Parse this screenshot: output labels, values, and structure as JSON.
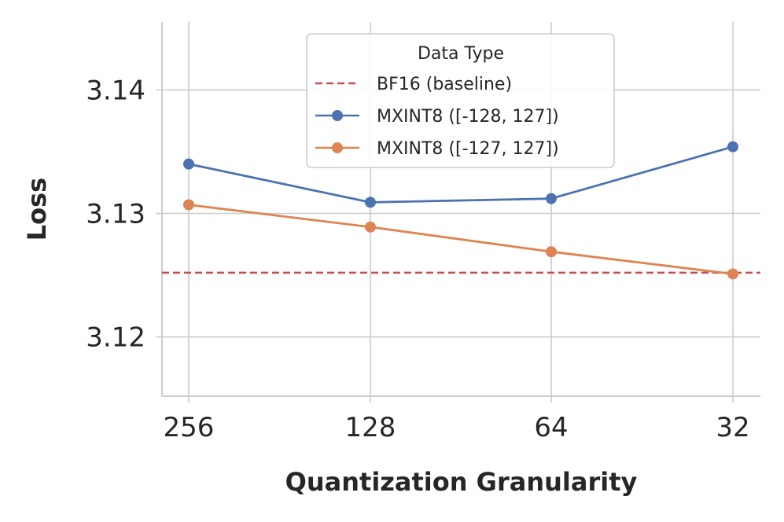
{
  "chart_data": {
    "type": "line",
    "categories": [
      "256",
      "128",
      "64",
      "32"
    ],
    "xlabel": "Quantization Granularity",
    "ylabel": "Loss",
    "ylim": [
      3.1152,
      3.1455
    ],
    "yticks": [
      "3.12",
      "3.13",
      "3.14"
    ],
    "ytick_values": [
      3.12,
      3.13,
      3.14
    ],
    "grid": true,
    "legend": {
      "title": "Data Type",
      "placement": "top-center"
    },
    "baseline": {
      "name": "BF16 (baseline)",
      "value": 3.1252,
      "color": "#c44e52",
      "style": "dashed"
    },
    "series": [
      {
        "name": "MXINT8 ([-128, 127])",
        "values": [
          3.134,
          3.1309,
          3.1312,
          3.1354
        ],
        "color": "#4c72b0"
      },
      {
        "name": "MXINT8 ([-127, 127])",
        "values": [
          3.1307,
          3.1289,
          3.1269,
          3.1251
        ],
        "color": "#dd8452"
      }
    ]
  }
}
